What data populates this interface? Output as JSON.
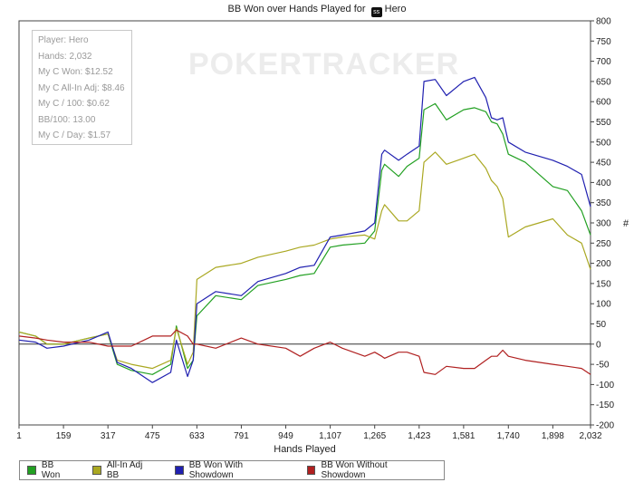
{
  "title_prefix": "BB Won over Hands Played for",
  "title_badge": "ss",
  "title_player": "Hero",
  "watermark": "POKERTRACKER",
  "stats": [
    "Player: Hero",
    "Hands: 2,032",
    "My C Won: $12.52",
    "My C All-In Adj: $8.46",
    "My C / 100: $0.62",
    "BB/100: 13.00",
    "My C / Day: $1.57"
  ],
  "chart_data": {
    "type": "line",
    "xlabel": "Hands Played",
    "ylabel": "#",
    "xlim": [
      1,
      2032
    ],
    "ylim": [
      -200,
      800
    ],
    "x_ticks": [
      1,
      159,
      317,
      475,
      633,
      791,
      949,
      1107,
      1265,
      1423,
      1581,
      1740,
      1898,
      2032
    ],
    "x_tick_labels": [
      "1",
      "159",
      "317",
      "475",
      "633",
      "791",
      "949",
      "1,107",
      "1,265",
      "1,423",
      "1,581",
      "1,740",
      "1,898",
      "2,032"
    ],
    "y_ticks": [
      -200,
      -150,
      -100,
      -50,
      0,
      50,
      100,
      150,
      200,
      250,
      300,
      350,
      400,
      450,
      500,
      550,
      600,
      650,
      700,
      750,
      800
    ],
    "y_tick_labels": [
      "-200",
      "-150",
      "-100",
      "-50",
      "0",
      "50",
      "100",
      "150",
      "200",
      "250",
      "300",
      "350",
      "400",
      "450",
      "500",
      "550",
      "600",
      "650",
      "700",
      "750",
      "800"
    ],
    "grid": false,
    "series": [
      {
        "name": "BB Won",
        "color": "#22a022",
        "x": [
          1,
          60,
          100,
          159,
          250,
          317,
          350,
          400,
          475,
          540,
          560,
          600,
          620,
          633,
          700,
          791,
          850,
          949,
          1000,
          1050,
          1107,
          1150,
          1230,
          1265,
          1290,
          1300,
          1350,
          1380,
          1423,
          1440,
          1480,
          1520,
          1581,
          1620,
          1660,
          1680,
          1700,
          1720,
          1740,
          1800,
          1898,
          1950,
          2000,
          2032
        ],
        "y": [
          30,
          20,
          0,
          0,
          15,
          25,
          -50,
          -65,
          -75,
          -50,
          45,
          -60,
          -40,
          70,
          120,
          110,
          145,
          160,
          170,
          175,
          240,
          245,
          250,
          280,
          430,
          445,
          415,
          440,
          460,
          580,
          595,
          555,
          580,
          585,
          575,
          550,
          545,
          520,
          470,
          450,
          390,
          380,
          330,
          270
        ]
      },
      {
        "name": "All-In Adj BB",
        "color": "#aaa822",
        "x": [
          1,
          60,
          100,
          159,
          250,
          317,
          350,
          400,
          475,
          540,
          560,
          600,
          620,
          633,
          700,
          791,
          850,
          949,
          1000,
          1050,
          1107,
          1150,
          1230,
          1265,
          1290,
          1300,
          1350,
          1380,
          1423,
          1440,
          1480,
          1520,
          1581,
          1620,
          1660,
          1680,
          1700,
          1720,
          1740,
          1800,
          1898,
          1950,
          2000,
          2032
        ],
        "y": [
          30,
          20,
          0,
          0,
          15,
          25,
          -40,
          -50,
          -60,
          -40,
          40,
          -50,
          -20,
          160,
          190,
          200,
          215,
          230,
          240,
          245,
          260,
          265,
          270,
          260,
          330,
          345,
          305,
          305,
          330,
          450,
          475,
          445,
          460,
          470,
          435,
          405,
          390,
          360,
          265,
          290,
          310,
          270,
          250,
          185
        ]
      },
      {
        "name": "BB Won With Showdown",
        "color": "#2020b0",
        "x": [
          1,
          60,
          100,
          159,
          250,
          317,
          350,
          400,
          475,
          540,
          560,
          600,
          620,
          633,
          700,
          791,
          850,
          949,
          1000,
          1050,
          1107,
          1150,
          1230,
          1265,
          1290,
          1300,
          1350,
          1380,
          1423,
          1440,
          1480,
          1520,
          1581,
          1620,
          1660,
          1680,
          1700,
          1720,
          1740,
          1800,
          1898,
          1950,
          2000,
          2032
        ],
        "y": [
          10,
          5,
          -10,
          -5,
          10,
          30,
          -45,
          -60,
          -95,
          -70,
          10,
          -80,
          -40,
          100,
          130,
          120,
          155,
          175,
          190,
          195,
          265,
          270,
          280,
          300,
          470,
          480,
          455,
          470,
          490,
          650,
          655,
          615,
          650,
          660,
          610,
          560,
          555,
          560,
          500,
          475,
          455,
          440,
          420,
          340
        ]
      },
      {
        "name": "BB Won Without Showdown",
        "color": "#b02020",
        "x": [
          1,
          60,
          100,
          159,
          250,
          317,
          350,
          400,
          475,
          540,
          560,
          600,
          620,
          633,
          700,
          791,
          850,
          949,
          1000,
          1050,
          1107,
          1150,
          1230,
          1265,
          1290,
          1300,
          1350,
          1380,
          1423,
          1440,
          1480,
          1520,
          1581,
          1620,
          1660,
          1680,
          1700,
          1720,
          1740,
          1800,
          1898,
          1950,
          2000,
          2032
        ],
        "y": [
          20,
          15,
          10,
          5,
          5,
          -5,
          -5,
          -5,
          20,
          20,
          35,
          20,
          0,
          0,
          -10,
          15,
          0,
          -10,
          -30,
          -10,
          5,
          -10,
          -30,
          -20,
          -30,
          -35,
          -20,
          -20,
          -30,
          -70,
          -75,
          -55,
          -60,
          -60,
          -40,
          -30,
          -30,
          -15,
          -30,
          -40,
          -50,
          -55,
          -60,
          -75
        ]
      }
    ]
  }
}
